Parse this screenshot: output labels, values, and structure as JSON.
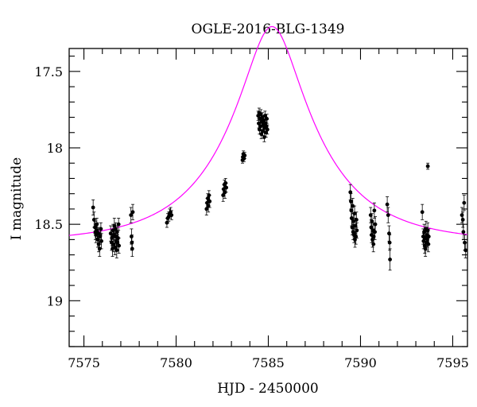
{
  "chart_data": {
    "type": "scatter",
    "title": "OGLE-2016-BLG-1349",
    "xlabel": "HJD - 2450000",
    "ylabel": "I magnitude",
    "xlim": [
      7574.2,
      7595.8
    ],
    "ylim": [
      19.3,
      17.35
    ],
    "y_inverted": true,
    "x_ticks": [
      7575,
      7580,
      7585,
      7590,
      7595
    ],
    "x_tick_labels": [
      "7575",
      "7580",
      "7585",
      "7590",
      "7595"
    ],
    "y_ticks": [
      17.5,
      18,
      18.5,
      19
    ],
    "y_tick_labels": [
      "17.5",
      "18",
      "18.5",
      "19"
    ],
    "x_minor_step": 1,
    "y_minor_step": 0.1,
    "grid": false,
    "legend": "none",
    "colors": {
      "data": "#000000",
      "model": "#ff00ff",
      "frame": "#000000"
    },
    "series": [
      {
        "kind": "points_with_errorbars",
        "points": [
          [
            7575.5,
            18.39,
            0.05
          ],
          [
            7575.55,
            18.47,
            0.05
          ],
          [
            7575.6,
            18.52,
            0.04
          ],
          [
            7575.62,
            18.55,
            0.05
          ],
          [
            7575.65,
            18.57,
            0.05
          ],
          [
            7575.7,
            18.5,
            0.04
          ],
          [
            7575.72,
            18.54,
            0.05
          ],
          [
            7575.75,
            18.6,
            0.05
          ],
          [
            7575.78,
            18.56,
            0.04
          ],
          [
            7575.8,
            18.63,
            0.05
          ],
          [
            7575.85,
            18.66,
            0.05
          ],
          [
            7575.88,
            18.58,
            0.05
          ],
          [
            7575.92,
            18.53,
            0.04
          ],
          [
            7575.95,
            18.61,
            0.05
          ],
          [
            7576.45,
            18.56,
            0.05
          ],
          [
            7576.5,
            18.62,
            0.05
          ],
          [
            7576.52,
            18.59,
            0.05
          ],
          [
            7576.55,
            18.66,
            0.05
          ],
          [
            7576.58,
            18.54,
            0.04
          ],
          [
            7576.6,
            18.63,
            0.05
          ],
          [
            7576.62,
            18.57,
            0.04
          ],
          [
            7576.65,
            18.51,
            0.05
          ],
          [
            7576.68,
            18.65,
            0.05
          ],
          [
            7576.7,
            18.58,
            0.05
          ],
          [
            7576.72,
            18.53,
            0.04
          ],
          [
            7576.75,
            18.61,
            0.05
          ],
          [
            7576.78,
            18.67,
            0.05
          ],
          [
            7576.8,
            18.55,
            0.04
          ],
          [
            7576.82,
            18.62,
            0.05
          ],
          [
            7576.85,
            18.59,
            0.05
          ],
          [
            7576.88,
            18.5,
            0.04
          ],
          [
            7576.9,
            18.64,
            0.05
          ],
          [
            7577.55,
            18.44,
            0.05
          ],
          [
            7577.58,
            18.58,
            0.05
          ],
          [
            7577.6,
            18.62,
            0.05
          ],
          [
            7577.62,
            18.66,
            0.05
          ],
          [
            7577.65,
            18.42,
            0.05
          ],
          [
            7579.5,
            18.49,
            0.03
          ],
          [
            7579.55,
            18.46,
            0.03
          ],
          [
            7579.6,
            18.45,
            0.03
          ],
          [
            7579.65,
            18.43,
            0.03
          ],
          [
            7579.7,
            18.42,
            0.03
          ],
          [
            7579.75,
            18.44,
            0.03
          ],
          [
            7581.65,
            18.4,
            0.04
          ],
          [
            7581.68,
            18.36,
            0.03
          ],
          [
            7581.72,
            18.33,
            0.03
          ],
          [
            7581.75,
            18.38,
            0.04
          ],
          [
            7581.78,
            18.31,
            0.03
          ],
          [
            7581.82,
            18.35,
            0.04
          ],
          [
            7582.55,
            18.31,
            0.04
          ],
          [
            7582.58,
            18.27,
            0.03
          ],
          [
            7582.62,
            18.24,
            0.03
          ],
          [
            7582.65,
            18.29,
            0.04
          ],
          [
            7582.68,
            18.23,
            0.03
          ],
          [
            7582.72,
            18.26,
            0.03
          ],
          [
            7583.6,
            18.08,
            0.02
          ],
          [
            7583.62,
            18.06,
            0.02
          ],
          [
            7583.65,
            18.04,
            0.02
          ],
          [
            7583.68,
            18.07,
            0.02
          ],
          [
            7583.72,
            18.05,
            0.02
          ],
          [
            7584.45,
            17.79,
            0.03
          ],
          [
            7584.48,
            17.84,
            0.03
          ],
          [
            7584.5,
            17.77,
            0.03
          ],
          [
            7584.52,
            17.88,
            0.03
          ],
          [
            7584.55,
            17.81,
            0.03
          ],
          [
            7584.58,
            17.86,
            0.03
          ],
          [
            7584.6,
            17.78,
            0.03
          ],
          [
            7584.62,
            17.91,
            0.03
          ],
          [
            7584.65,
            17.83,
            0.03
          ],
          [
            7584.68,
            17.8,
            0.03
          ],
          [
            7584.7,
            17.89,
            0.03
          ],
          [
            7584.72,
            17.85,
            0.03
          ],
          [
            7584.75,
            17.82,
            0.03
          ],
          [
            7584.78,
            17.93,
            0.03
          ],
          [
            7584.8,
            17.87,
            0.03
          ],
          [
            7584.82,
            17.79,
            0.03
          ],
          [
            7584.85,
            17.84,
            0.03
          ],
          [
            7584.88,
            17.9,
            0.03
          ],
          [
            7584.9,
            17.86,
            0.03
          ],
          [
            7584.92,
            17.81,
            0.03
          ],
          [
            7584.95,
            17.88,
            0.03
          ],
          [
            7589.45,
            18.29,
            0.05
          ],
          [
            7589.48,
            18.35,
            0.05
          ],
          [
            7589.5,
            18.41,
            0.05
          ],
          [
            7589.52,
            18.46,
            0.05
          ],
          [
            7589.55,
            18.52,
            0.05
          ],
          [
            7589.58,
            18.38,
            0.05
          ],
          [
            7589.6,
            18.55,
            0.05
          ],
          [
            7589.62,
            18.48,
            0.05
          ],
          [
            7589.65,
            18.57,
            0.05
          ],
          [
            7589.68,
            18.43,
            0.05
          ],
          [
            7589.7,
            18.6,
            0.05
          ],
          [
            7589.72,
            18.51,
            0.05
          ],
          [
            7589.75,
            18.58,
            0.05
          ],
          [
            7589.78,
            18.47,
            0.05
          ],
          [
            7589.8,
            18.54,
            0.05
          ],
          [
            7590.55,
            18.44,
            0.05
          ],
          [
            7590.58,
            18.52,
            0.05
          ],
          [
            7590.6,
            18.57,
            0.05
          ],
          [
            7590.62,
            18.48,
            0.05
          ],
          [
            7590.65,
            18.6,
            0.05
          ],
          [
            7590.68,
            18.54,
            0.05
          ],
          [
            7590.7,
            18.63,
            0.05
          ],
          [
            7590.72,
            18.58,
            0.05
          ],
          [
            7590.75,
            18.41,
            0.05
          ],
          [
            7590.78,
            18.55,
            0.05
          ],
          [
            7590.8,
            18.5,
            0.05
          ],
          [
            7591.45,
            18.37,
            0.05
          ],
          [
            7591.5,
            18.44,
            0.05
          ],
          [
            7591.55,
            18.56,
            0.05
          ],
          [
            7591.58,
            18.62,
            0.05
          ],
          [
            7591.6,
            18.73,
            0.07
          ],
          [
            7593.35,
            18.42,
            0.05
          ],
          [
            7593.4,
            18.58,
            0.05
          ],
          [
            7593.42,
            18.61,
            0.05
          ],
          [
            7593.45,
            18.55,
            0.05
          ],
          [
            7593.48,
            18.64,
            0.05
          ],
          [
            7593.5,
            18.59,
            0.05
          ],
          [
            7593.52,
            18.66,
            0.05
          ],
          [
            7593.55,
            18.53,
            0.05
          ],
          [
            7593.58,
            18.62,
            0.05
          ],
          [
            7593.6,
            18.57,
            0.05
          ],
          [
            7593.62,
            18.6,
            0.05
          ],
          [
            7593.65,
            18.54,
            0.05
          ],
          [
            7593.68,
            18.63,
            0.05
          ],
          [
            7593.7,
            18.58,
            0.05
          ],
          [
            7593.65,
            18.12,
            0.02
          ],
          [
            7595.5,
            18.44,
            0.05
          ],
          [
            7595.55,
            18.47,
            0.05
          ],
          [
            7595.58,
            18.55,
            0.05
          ],
          [
            7595.62,
            18.36,
            0.05
          ],
          [
            7595.65,
            18.62,
            0.05
          ],
          [
            7595.7,
            18.67,
            0.05
          ]
        ]
      },
      {
        "kind": "model_curve",
        "model": {
          "t0": 7585.2,
          "u0": 0.28,
          "tE": 5.0,
          "base_mag": 18.62
        }
      }
    ]
  }
}
